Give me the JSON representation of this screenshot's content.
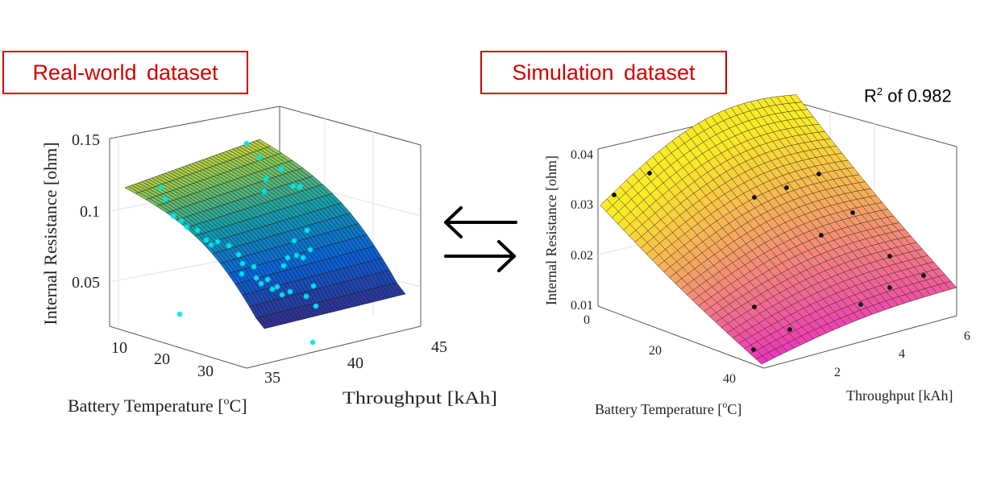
{
  "labels": {
    "left_tag": "Real-world dataset",
    "right_tag": "Simulation dataset",
    "r2_prefix": "R",
    "r2_sup": "2",
    "r2_suffix": " of 0.982"
  },
  "colors": {
    "tag_border": "#d40000",
    "scatter_left": "#00e5ee",
    "scatter_right": "#111111"
  },
  "chart_data": [
    {
      "type": "surface",
      "title": "Real-world dataset",
      "zlabel": "Internal Resistance [ohm]",
      "xlabel": "Battery Temperature [°C]",
      "xlabel_main": "Battery Temperature [",
      "xlabel_sup": "o",
      "xlabel_end": "C]",
      "ylabel": "Throughput [kAh]",
      "colormap": "parula",
      "x_ticks": [
        "10",
        "20",
        "30"
      ],
      "y_ticks": [
        "35",
        "40",
        "45"
      ],
      "z_ticks": [
        "0.05",
        "0.1",
        "0.15"
      ],
      "xlim": [
        5,
        35
      ],
      "ylim": [
        34,
        46
      ],
      "zlim": [
        0.02,
        0.15
      ]
    },
    {
      "type": "surface",
      "title": "Simulation dataset",
      "zlabel": "Internal Resistance [ohm]",
      "xlabel": "Battery Temperature [°C]",
      "xlabel_main": "Battery Temperature [",
      "xlabel_sup": "o",
      "xlabel_end": "C]",
      "ylabel": "Throughput [kAh]",
      "colormap": "spring",
      "x_ticks": [
        "0",
        "20",
        "40"
      ],
      "y_ticks": [
        "2",
        "4",
        "6"
      ],
      "z_ticks": [
        "0.01",
        "0.02",
        "0.03",
        "0.04"
      ],
      "xlim": [
        0,
        45
      ],
      "ylim": [
        0,
        6
      ],
      "zlim": [
        0.01,
        0.04
      ],
      "r_squared": 0.982
    }
  ]
}
